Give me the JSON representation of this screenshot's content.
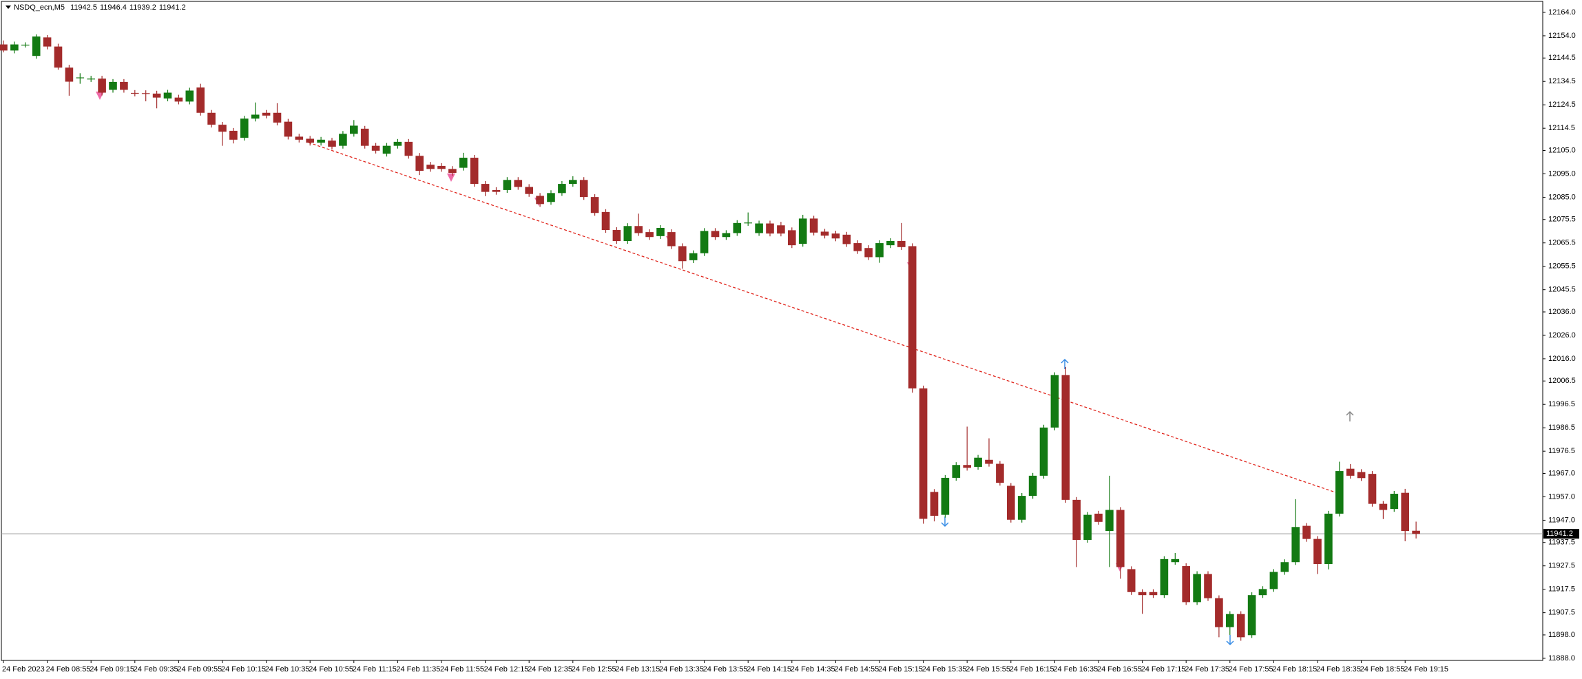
{
  "chart_data": {
    "type": "candlestick",
    "title": "NSDQ_ecn,M5",
    "up_color": "#137a13",
    "down_color": "#a32b2b",
    "categories": [
      "24 Feb 2023",
      null,
      null,
      null,
      "24 Feb 08:55",
      null,
      null,
      null,
      "24 Feb 09:15",
      null,
      null,
      null,
      "24 Feb 09:35",
      null,
      null,
      null,
      "24 Feb 09:55",
      null,
      null,
      null,
      "24 Feb 10:15",
      null,
      null,
      null,
      "24 Feb 10:35",
      null,
      null,
      null,
      "24 Feb 10:55",
      null,
      null,
      null,
      "24 Feb 11:15",
      null,
      null,
      null,
      "24 Feb 11:35",
      null,
      null,
      null,
      "24 Feb 11:55",
      null,
      null,
      null,
      "24 Feb 12:15",
      null,
      null,
      null,
      "24 Feb 12:35",
      null,
      null,
      null,
      "24 Feb 12:55",
      null,
      null,
      null,
      "24 Feb 13:15",
      null,
      null,
      null,
      "24 Feb 13:35",
      null,
      null,
      null,
      "24 Feb 13:55",
      null,
      null,
      null,
      "24 Feb 14:15",
      null,
      null,
      null,
      "24 Feb 14:35",
      null,
      null,
      null,
      "24 Feb 14:55",
      null,
      null,
      null,
      "24 Feb 15:15",
      null,
      null,
      null,
      "24 Feb 15:35",
      null,
      null,
      null,
      "24 Feb 15:55",
      null,
      null,
      null,
      "24 Feb 16:15",
      null,
      null,
      null,
      "24 Feb 16:35",
      null,
      null,
      null,
      "24 Feb 16:55",
      null,
      null,
      null,
      "24 Feb 17:15",
      null,
      null,
      null,
      "24 Feb 17:35",
      null,
      null,
      null,
      "24 Feb 17:55",
      null,
      null,
      null,
      "24 Feb 18:15",
      null,
      null,
      null,
      "24 Feb 18:35",
      null,
      null,
      null,
      "24 Feb 18:55",
      null,
      null,
      null,
      "24 Feb 19:15",
      null
    ],
    "open": [
      12150.3,
      12147.7,
      12150.0,
      12145.4,
      12153.3,
      12149.4,
      12140.4,
      12136.0,
      12135.5,
      12135.7,
      12130.9,
      12134.3,
      12129.6,
      12129.5,
      12129.3,
      12127.2,
      12127.6,
      12125.9,
      12131.9,
      12121.1,
      12116.0,
      12113.4,
      12110.4,
      12118.6,
      12121.1,
      12121.1,
      12117.3,
      12110.9,
      12110.0,
      12108.3,
      12109.2,
      12107.0,
      12112.1,
      12114.3,
      12107.0,
      12103.6,
      12107.0,
      12108.7,
      12102.7,
      12098.9,
      12098.4,
      12097.1,
      12097.6,
      12101.9,
      12090.7,
      12088.1,
      12088.1,
      12092.4,
      12089.4,
      12085.6,
      12083.0,
      12086.8,
      12090.7,
      12092.4,
      12085.1,
      12078.7,
      12071.0,
      12066.3,
      12072.7,
      12070.1,
      12068.4,
      12070.1,
      12064.1,
      12058.1,
      12061.1,
      12070.6,
      12068.0,
      12069.7,
      12074.0,
      12069.7,
      12073.8,
      12073.0,
      12070.9,
      12065.1,
      12075.9,
      12070.3,
      12069.5,
      12069.0,
      12065.4,
      12063.3,
      12059.4,
      12064.5,
      12066.3,
      12064.1,
      12003.3,
      11959.1,
      11949.3,
      11965.1,
      11970.6,
      11969.8,
      11972.8,
      11971.1,
      11961.7,
      11947.2,
      11957.4,
      11966.0,
      11986.6,
      12009.0,
      11955.7,
      11938.6,
      11949.8,
      11942.4,
      11951.4,
      11926.1,
      11916.3,
      11916.3,
      11915.0,
      11929.1,
      11927.4,
      11912.0,
      11924.0,
      11913.7,
      11901.3,
      11906.9,
      11897.9,
      11915.0,
      11917.6,
      11924.9,
      11929.1,
      11944.6,
      11939.0,
      11928.3,
      11949.8,
      11969.0,
      11967.6,
      11966.8,
      11954.0,
      11951.8,
      11958.7,
      11942.5
    ],
    "high": [
      12152.0,
      12151.5,
      12151.2,
      12154.6,
      12154.3,
      12150.6,
      12141.6,
      12138.0,
      12136.9,
      12136.9,
      12135.5,
      12135.5,
      12130.8,
      12130.7,
      12130.5,
      12130.9,
      12128.8,
      12131.8,
      12133.5,
      12122.3,
      12117.2,
      12114.6,
      12119.8,
      12125.5,
      12122.3,
      12125.2,
      12118.5,
      12112.1,
      12111.2,
      12110.8,
      12110.4,
      12113.3,
      12118.0,
      12115.5,
      12108.2,
      12108.2,
      12109.9,
      12109.9,
      12103.9,
      12100.1,
      12099.6,
      12098.3,
      12104.0,
      12103.1,
      12091.9,
      12089.3,
      12093.6,
      12093.6,
      12090.6,
      12086.8,
      12088.0,
      12091.9,
      12094.0,
      12093.6,
      12086.3,
      12079.9,
      12072.2,
      12073.9,
      12078.0,
      12071.3,
      12073.1,
      12071.3,
      12065.3,
      12062.3,
      12071.8,
      12071.8,
      12070.9,
      12075.2,
      12078.5,
      12075.0,
      12075.0,
      12074.5,
      12072.1,
      12077.5,
      12077.1,
      12071.5,
      12070.7,
      12070.2,
      12066.6,
      12064.5,
      12066.6,
      12067.5,
      12074.0,
      12065.3,
      12004.5,
      11960.3,
      11966.3,
      11971.8,
      11987.0,
      11974.9,
      11982.0,
      11972.3,
      11962.9,
      11958.6,
      11967.2,
      11987.8,
      12010.2,
      12012.5,
      11956.9,
      11950.5,
      11951.0,
      11966.0,
      11952.6,
      11927.3,
      11917.5,
      11917.5,
      11931.6,
      11933.0,
      11928.6,
      11925.2,
      11925.2,
      11914.9,
      11908.1,
      11908.1,
      11916.2,
      11918.8,
      11926.1,
      11930.3,
      11956.0,
      11945.8,
      11940.2,
      11951.0,
      11972.0,
      11971.0,
      11968.8,
      11968.0,
      11955.2,
      11959.5,
      11960.4,
      11946.4
    ],
    "low": [
      12146.9,
      12146.5,
      12149.0,
      12144.2,
      12148.2,
      12139.5,
      12128.4,
      12133.5,
      12134.3,
      12128.5,
      12129.7,
      12129.7,
      12128.1,
      12126.0,
      12123.0,
      12126.0,
      12124.7,
      12124.7,
      12119.9,
      12114.8,
      12107.0,
      12108.0,
      12109.2,
      12117.4,
      12118.7,
      12115.7,
      12109.7,
      12108.4,
      12107.1,
      12107.1,
      12105.4,
      12105.8,
      12110.9,
      12105.8,
      12103.7,
      12102.4,
      12105.8,
      12101.5,
      12094.5,
      12095.9,
      12095.9,
      12094.2,
      12096.4,
      12089.5,
      12085.5,
      12086.1,
      12086.9,
      12088.2,
      12085.2,
      12080.9,
      12081.8,
      12085.6,
      12089.5,
      12083.9,
      12077.1,
      12069.8,
      12065.1,
      12065.1,
      12068.5,
      12066.8,
      12067.2,
      12062.9,
      12054.5,
      12056.9,
      12059.9,
      12066.8,
      12066.8,
      12068.5,
      12072.8,
      12068.5,
      12068.3,
      12068.3,
      12063.3,
      12063.9,
      12068.7,
      12067.4,
      12066.2,
      12063.8,
      12060.8,
      12058.2,
      12057.0,
      12063.3,
      12062.5,
      12001.5,
      11945.5,
      11946.5,
      11948.1,
      11963.9,
      11968.2,
      11968.6,
      11969.9,
      11961.8,
      11946.0,
      11946.0,
      11956.2,
      11964.8,
      11985.4,
      11954.5,
      11927.0,
      11937.4,
      11945.1,
      11927.0,
      11922.0,
      11915.1,
      11907.0,
      11913.8,
      11913.8,
      11928.0,
      11910.8,
      11910.8,
      11912.5,
      11897.0,
      11898.0,
      11895.5,
      11896.7,
      11913.8,
      11916.4,
      11923.7,
      11927.9,
      11937.8,
      11924.0,
      11926.0,
      11948.6,
      11964.8,
      11963.8,
      11952.8,
      11947.5,
      11950.6,
      11938.0,
      11939.2
    ],
    "close": [
      12147.7,
      12150.3,
      12150.2,
      12153.7,
      12149.4,
      12140.4,
      12134.4,
      12136.2,
      12135.7,
      12129.7,
      12134.3,
      12130.9,
      12129.3,
      12129.2,
      12127.6,
      12129.7,
      12125.9,
      12130.6,
      12121.1,
      12116.0,
      12113.0,
      12109.6,
      12118.6,
      12120.3,
      12119.9,
      12116.9,
      12110.9,
      12109.6,
      12108.3,
      12109.6,
      12106.6,
      12112.1,
      12115.6,
      12107.0,
      12104.9,
      12107.0,
      12108.7,
      12102.7,
      12096.3,
      12097.1,
      12097.1,
      12095.4,
      12101.9,
      12090.7,
      12087.3,
      12087.3,
      12092.4,
      12089.4,
      12086.4,
      12082.1,
      12086.8,
      12090.7,
      12092.4,
      12085.1,
      12078.3,
      12071.0,
      12066.3,
      12072.7,
      12069.7,
      12068.0,
      12071.9,
      12064.1,
      12057.7,
      12061.1,
      12070.6,
      12068.0,
      12069.7,
      12074.0,
      12074.2,
      12073.8,
      12069.5,
      12069.5,
      12064.5,
      12075.9,
      12069.9,
      12068.6,
      12067.4,
      12065.0,
      12062.0,
      12059.4,
      12065.4,
      12066.3,
      12063.7,
      12003.3,
      11947.6,
      11948.9,
      11965.1,
      11970.6,
      11969.4,
      11973.7,
      11971.1,
      11963.0,
      11947.2,
      11957.4,
      11966.0,
      11986.6,
      12009.0,
      11955.7,
      11938.6,
      11949.3,
      11946.3,
      11951.4,
      11927.0,
      11916.3,
      11915.0,
      11915.0,
      11930.4,
      11930.4,
      11912.0,
      11924.0,
      11913.7,
      11901.3,
      11906.9,
      11897.0,
      11915.0,
      11917.6,
      11924.9,
      11929.1,
      11944.1,
      11939.0,
      11928.3,
      11949.8,
      11968.0,
      11966.0,
      11965.0,
      11954.0,
      11951.4,
      11958.3,
      11942.4,
      11941.2
    ],
    "ylim": [
      11887.1,
      12168.7
    ],
    "yticks": [
      {
        "value": 12164,
        "label": "12164.0"
      },
      {
        "value": 12154,
        "label": "12154.0"
      },
      12144.5,
      12134.5,
      12124.5,
      12114.5,
      {
        "value": 12105,
        "label": "12105.0"
      },
      {
        "value": 12095,
        "label": "12095.0"
      },
      {
        "value": 12085,
        "label": "12085.0"
      },
      12075.5,
      12065.5,
      12055.5,
      12045.5,
      {
        "value": 12036,
        "label": "12036.0"
      },
      {
        "value": 12026,
        "label": "12026.0"
      },
      {
        "value": 12016,
        "label": "12016.0"
      },
      12006.5,
      11996.5,
      11986.5,
      11976.5,
      {
        "value": 11967,
        "label": "11967.0"
      },
      {
        "value": 11957,
        "label": "11957.0"
      },
      {
        "value": 11947,
        "label": "11947.0"
      },
      11937.5,
      11927.5,
      11917.5,
      11907.5,
      {
        "value": 11898,
        "label": "11898.0"
      },
      {
        "value": 11888,
        "label": "11888.0"
      }
    ],
    "grid": false
  }
}
